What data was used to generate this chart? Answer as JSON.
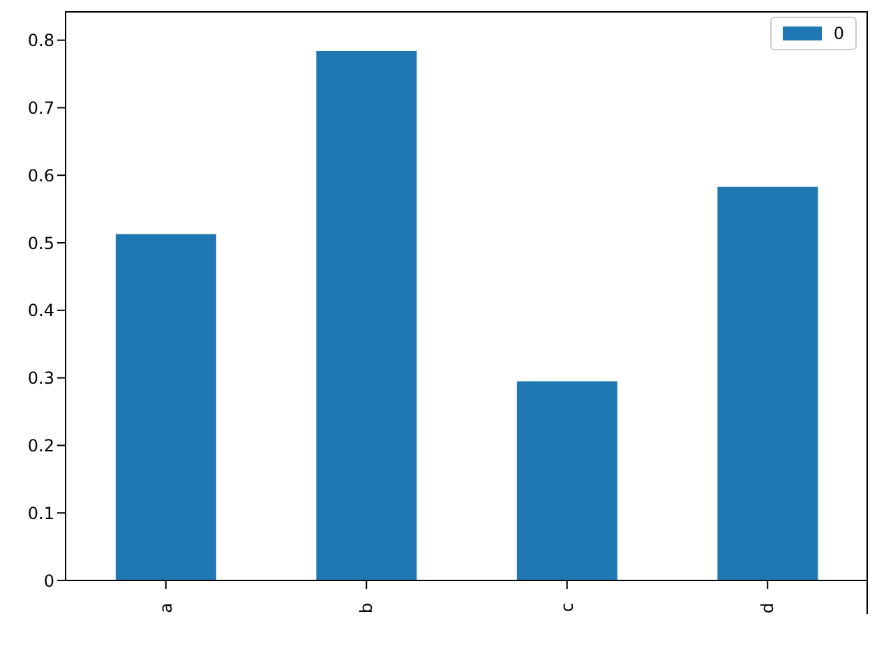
{
  "chart_data": {
    "type": "bar",
    "categories": [
      "a",
      "b",
      "c",
      "d"
    ],
    "series": [
      {
        "name": "0",
        "color": "#1f77b4",
        "values": [
          0.513,
          0.784,
          0.295,
          0.583
        ]
      }
    ],
    "ylim": [
      0,
      0.843
    ],
    "yticks": [
      0,
      0.1,
      0.2,
      0.3,
      0.4,
      0.5,
      0.6,
      0.7,
      0.8
    ],
    "legend": "top right"
  }
}
